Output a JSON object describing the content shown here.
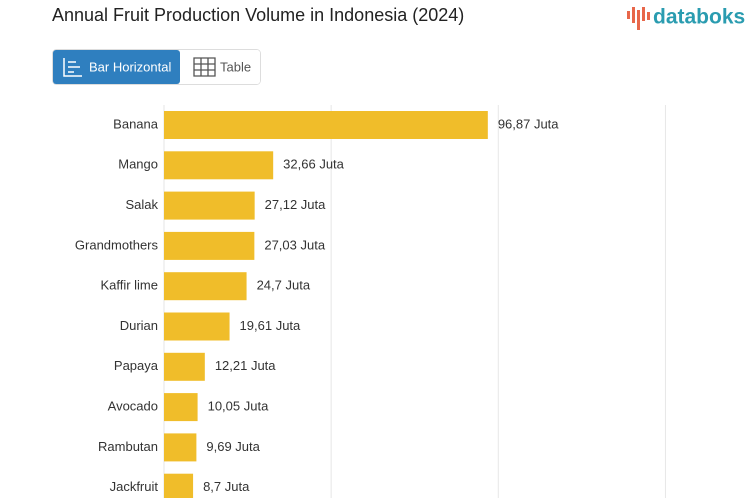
{
  "ui": {
    "logo": "databoks",
    "tabs": [
      "Bar Horizontal",
      "Table"
    ],
    "active_tab": 0
  },
  "chart_data": {
    "type": "bar",
    "orientation": "horizontal",
    "title": "Annual Fruit Production Volume in Indonesia (2024)",
    "categories": [
      "Banana",
      "Mango",
      "Salak",
      "Grandmothers",
      "Kaffir lime",
      "Durian",
      "Papaya",
      "Avocado",
      "Rambutan",
      "Jackfruit"
    ],
    "values": [
      96.87,
      32.66,
      27.12,
      27.03,
      24.7,
      19.61,
      12.21,
      10.05,
      9.69,
      8.7
    ],
    "value_labels": [
      "96,87 Juta",
      "32,66 Juta",
      "27,12 Juta",
      "27,03 Juta",
      "24,7 Juta",
      "19,61 Juta",
      "12,21 Juta",
      "10,05 Juta",
      "9,69 Juta",
      "8,7 Juta"
    ],
    "color": "#f0bd2a",
    "xlim": [
      0,
      175
    ],
    "xgrid": [
      0,
      50,
      100,
      150
    ],
    "grid": true
  }
}
